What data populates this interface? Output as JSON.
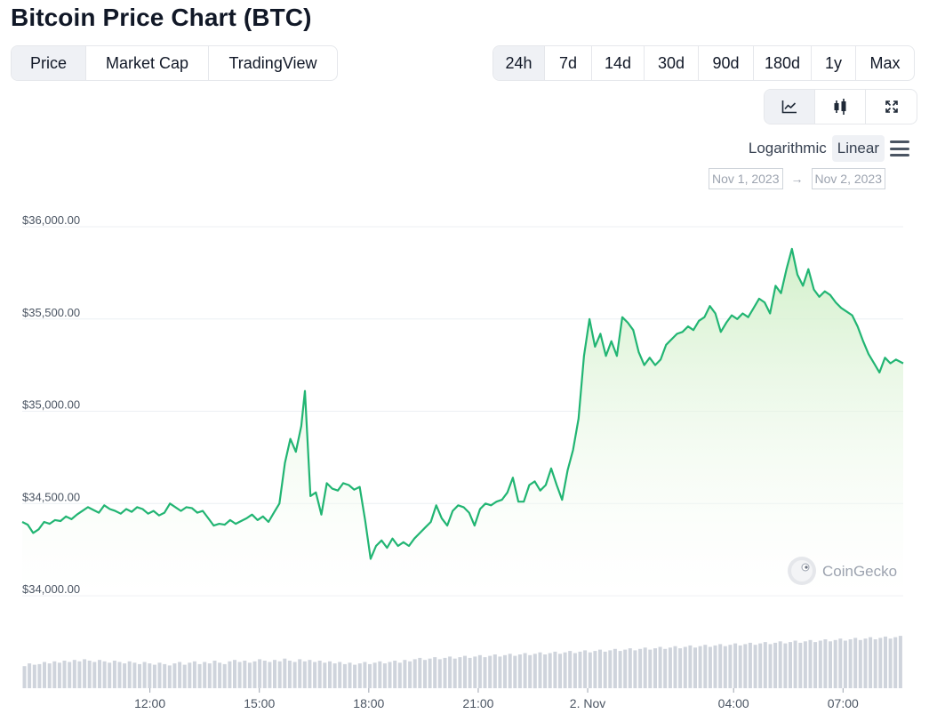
{
  "title": "Bitcoin Price Chart (BTC)",
  "view_tabs": [
    {
      "label": "Price",
      "active": true
    },
    {
      "label": "Market Cap",
      "active": false
    },
    {
      "label": "TradingView",
      "active": false
    }
  ],
  "range_tabs": [
    {
      "label": "24h",
      "active": true
    },
    {
      "label": "7d",
      "active": false
    },
    {
      "label": "14d",
      "active": false
    },
    {
      "label": "30d",
      "active": false
    },
    {
      "label": "90d",
      "active": false
    },
    {
      "label": "180d",
      "active": false
    },
    {
      "label": "1y",
      "active": false
    },
    {
      "label": "Max",
      "active": false
    }
  ],
  "chart_type_tabs": [
    {
      "icon": "line-chart-icon",
      "active": true
    },
    {
      "icon": "candlestick-icon",
      "active": false
    },
    {
      "icon": "fullscreen-icon",
      "active": false
    }
  ],
  "scale": {
    "logarithmic": "Logarithmic",
    "linear": "Linear",
    "active": "Linear",
    "menu_icon": "hamburger-menu-icon"
  },
  "date_range": {
    "from": "Nov 1, 2023",
    "arrow": "→",
    "to": "Nov 2, 2023"
  },
  "watermark": {
    "text": "CoinGecko",
    "icon": "coingecko-logo-icon"
  },
  "colors": {
    "line": "#22b573",
    "fill_top": "#cfeec6",
    "grid": "#eceff3",
    "volume": "#cfd4dc"
  },
  "chart_data": {
    "type": "area",
    "xlabel": "",
    "ylabel": "",
    "ylim": [
      34000,
      36000
    ],
    "yticks": [
      36000,
      35500,
      35000,
      34500,
      34000
    ],
    "ytick_labels": [
      "$36,000.00",
      "$35,500.00",
      "$35,000.00",
      "$34,500.00",
      "$34,000.00"
    ],
    "xticks": [
      {
        "label": "12:00",
        "t": 3.5
      },
      {
        "label": "15:00",
        "t": 6.5
      },
      {
        "label": "18:00",
        "t": 9.5
      },
      {
        "label": "21:00",
        "t": 12.5
      },
      {
        "label": "2. Nov",
        "t": 15.5
      },
      {
        "label": "04:00",
        "t": 19.5
      },
      {
        "label": "07:00",
        "t": 22.5
      }
    ],
    "x_range": [
      0,
      24.15
    ],
    "grid": true,
    "series": [
      {
        "name": "",
        "points": [
          [
            0.0,
            34400
          ],
          [
            0.15,
            34385
          ],
          [
            0.3,
            34340
          ],
          [
            0.45,
            34360
          ],
          [
            0.6,
            34400
          ],
          [
            0.75,
            34390
          ],
          [
            0.9,
            34410
          ],
          [
            1.05,
            34405
          ],
          [
            1.2,
            34430
          ],
          [
            1.35,
            34415
          ],
          [
            1.5,
            34440
          ],
          [
            1.65,
            34460
          ],
          [
            1.8,
            34480
          ],
          [
            1.95,
            34465
          ],
          [
            2.1,
            34450
          ],
          [
            2.25,
            34490
          ],
          [
            2.4,
            34470
          ],
          [
            2.55,
            34460
          ],
          [
            2.7,
            34445
          ],
          [
            2.85,
            34470
          ],
          [
            3.0,
            34455
          ],
          [
            3.15,
            34480
          ],
          [
            3.3,
            34470
          ],
          [
            3.45,
            34445
          ],
          [
            3.6,
            34460
          ],
          [
            3.75,
            34435
          ],
          [
            3.9,
            34450
          ],
          [
            4.05,
            34500
          ],
          [
            4.2,
            34480
          ],
          [
            4.35,
            34460
          ],
          [
            4.5,
            34480
          ],
          [
            4.65,
            34475
          ],
          [
            4.8,
            34450
          ],
          [
            4.95,
            34460
          ],
          [
            5.1,
            34420
          ],
          [
            5.25,
            34380
          ],
          [
            5.4,
            34390
          ],
          [
            5.55,
            34385
          ],
          [
            5.7,
            34410
          ],
          [
            5.85,
            34390
          ],
          [
            6.0,
            34405
          ],
          [
            6.15,
            34420
          ],
          [
            6.3,
            34440
          ],
          [
            6.45,
            34410
          ],
          [
            6.6,
            34430
          ],
          [
            6.75,
            34400
          ],
          [
            6.9,
            34450
          ],
          [
            7.05,
            34500
          ],
          [
            7.2,
            34720
          ],
          [
            7.35,
            34850
          ],
          [
            7.5,
            34780
          ],
          [
            7.65,
            34920
          ],
          [
            7.75,
            35110
          ],
          [
            7.9,
            34540
          ],
          [
            8.05,
            34560
          ],
          [
            8.2,
            34440
          ],
          [
            8.35,
            34610
          ],
          [
            8.5,
            34580
          ],
          [
            8.65,
            34570
          ],
          [
            8.8,
            34610
          ],
          [
            8.95,
            34600
          ],
          [
            9.1,
            34575
          ],
          [
            9.25,
            34590
          ],
          [
            9.4,
            34410
          ],
          [
            9.55,
            34200
          ],
          [
            9.7,
            34270
          ],
          [
            9.85,
            34300
          ],
          [
            10.0,
            34260
          ],
          [
            10.15,
            34310
          ],
          [
            10.3,
            34270
          ],
          [
            10.45,
            34290
          ],
          [
            10.6,
            34270
          ],
          [
            10.75,
            34310
          ],
          [
            10.9,
            34340
          ],
          [
            11.05,
            34370
          ],
          [
            11.2,
            34400
          ],
          [
            11.35,
            34490
          ],
          [
            11.5,
            34420
          ],
          [
            11.65,
            34380
          ],
          [
            11.8,
            34460
          ],
          [
            11.95,
            34490
          ],
          [
            12.1,
            34480
          ],
          [
            12.25,
            34450
          ],
          [
            12.4,
            34380
          ],
          [
            12.55,
            34470
          ],
          [
            12.7,
            34500
          ],
          [
            12.85,
            34490
          ],
          [
            13.0,
            34510
          ],
          [
            13.15,
            34520
          ],
          [
            13.3,
            34560
          ],
          [
            13.45,
            34640
          ],
          [
            13.6,
            34510
          ],
          [
            13.75,
            34510
          ],
          [
            13.9,
            34600
          ],
          [
            14.05,
            34620
          ],
          [
            14.2,
            34570
          ],
          [
            14.35,
            34600
          ],
          [
            14.5,
            34690
          ],
          [
            14.65,
            34600
          ],
          [
            14.8,
            34520
          ],
          [
            14.95,
            34680
          ],
          [
            15.1,
            34790
          ],
          [
            15.25,
            34960
          ],
          [
            15.4,
            35300
          ],
          [
            15.55,
            35500
          ],
          [
            15.7,
            35350
          ],
          [
            15.85,
            35420
          ],
          [
            16.0,
            35300
          ],
          [
            16.15,
            35380
          ],
          [
            16.3,
            35300
          ],
          [
            16.45,
            35510
          ],
          [
            16.6,
            35480
          ],
          [
            16.75,
            35440
          ],
          [
            16.9,
            35320
          ],
          [
            17.05,
            35250
          ],
          [
            17.2,
            35290
          ],
          [
            17.35,
            35250
          ],
          [
            17.5,
            35280
          ],
          [
            17.65,
            35360
          ],
          [
            17.8,
            35390
          ],
          [
            17.95,
            35420
          ],
          [
            18.1,
            35430
          ],
          [
            18.25,
            35460
          ],
          [
            18.4,
            35440
          ],
          [
            18.55,
            35490
          ],
          [
            18.7,
            35510
          ],
          [
            18.85,
            35570
          ],
          [
            19.0,
            35530
          ],
          [
            19.15,
            35430
          ],
          [
            19.3,
            35480
          ],
          [
            19.45,
            35520
          ],
          [
            19.6,
            35500
          ],
          [
            19.75,
            35530
          ],
          [
            19.9,
            35510
          ],
          [
            20.05,
            35560
          ],
          [
            20.2,
            35610
          ],
          [
            20.35,
            35590
          ],
          [
            20.5,
            35530
          ],
          [
            20.65,
            35680
          ],
          [
            20.8,
            35640
          ],
          [
            20.95,
            35770
          ],
          [
            21.1,
            35880
          ],
          [
            21.25,
            35740
          ],
          [
            21.4,
            35680
          ],
          [
            21.55,
            35770
          ],
          [
            21.7,
            35660
          ],
          [
            21.85,
            35620
          ],
          [
            22.0,
            35650
          ],
          [
            22.15,
            35630
          ],
          [
            22.3,
            35590
          ],
          [
            22.45,
            35560
          ],
          [
            22.6,
            35540
          ],
          [
            22.75,
            35520
          ],
          [
            22.9,
            35460
          ],
          [
            23.05,
            35380
          ],
          [
            23.2,
            35310
          ],
          [
            23.35,
            35260
          ],
          [
            23.5,
            35210
          ],
          [
            23.65,
            35290
          ],
          [
            23.8,
            35260
          ],
          [
            23.95,
            35280
          ],
          [
            24.15,
            35260
          ]
        ]
      }
    ],
    "volume": [
      0.32,
      0.36,
      0.34,
      0.35,
      0.38,
      0.36,
      0.39,
      0.37,
      0.4,
      0.38,
      0.41,
      0.39,
      0.42,
      0.4,
      0.38,
      0.41,
      0.39,
      0.37,
      0.4,
      0.38,
      0.36,
      0.39,
      0.37,
      0.35,
      0.38,
      0.36,
      0.34,
      0.37,
      0.35,
      0.33,
      0.36,
      0.38,
      0.34,
      0.37,
      0.39,
      0.35,
      0.38,
      0.36,
      0.4,
      0.37,
      0.35,
      0.39,
      0.41,
      0.38,
      0.4,
      0.37,
      0.39,
      0.42,
      0.4,
      0.38,
      0.41,
      0.39,
      0.43,
      0.4,
      0.38,
      0.42,
      0.39,
      0.41,
      0.38,
      0.4,
      0.37,
      0.39,
      0.36,
      0.38,
      0.35,
      0.37,
      0.34,
      0.36,
      0.38,
      0.35,
      0.37,
      0.39,
      0.36,
      0.38,
      0.4,
      0.37,
      0.41,
      0.39,
      0.42,
      0.44,
      0.41,
      0.43,
      0.45,
      0.42,
      0.44,
      0.46,
      0.43,
      0.45,
      0.47,
      0.44,
      0.46,
      0.48,
      0.45,
      0.47,
      0.49,
      0.46,
      0.48,
      0.5,
      0.47,
      0.49,
      0.51,
      0.48,
      0.5,
      0.52,
      0.49,
      0.51,
      0.53,
      0.5,
      0.52,
      0.54,
      0.51,
      0.53,
      0.55,
      0.52,
      0.54,
      0.56,
      0.53,
      0.55,
      0.57,
      0.54,
      0.56,
      0.58,
      0.55,
      0.57,
      0.59,
      0.56,
      0.58,
      0.6,
      0.57,
      0.59,
      0.61,
      0.58,
      0.6,
      0.62,
      0.59,
      0.61,
      0.63,
      0.6,
      0.62,
      0.64,
      0.61,
      0.63,
      0.65,
      0.62,
      0.64,
      0.66,
      0.63,
      0.65,
      0.67,
      0.64,
      0.66,
      0.68,
      0.65,
      0.67,
      0.69,
      0.66,
      0.68,
      0.7,
      0.67,
      0.69,
      0.71,
      0.68,
      0.7,
      0.72,
      0.69,
      0.71,
      0.73,
      0.7,
      0.72,
      0.74,
      0.71,
      0.73,
      0.75,
      0.72,
      0.74,
      0.76
    ]
  }
}
